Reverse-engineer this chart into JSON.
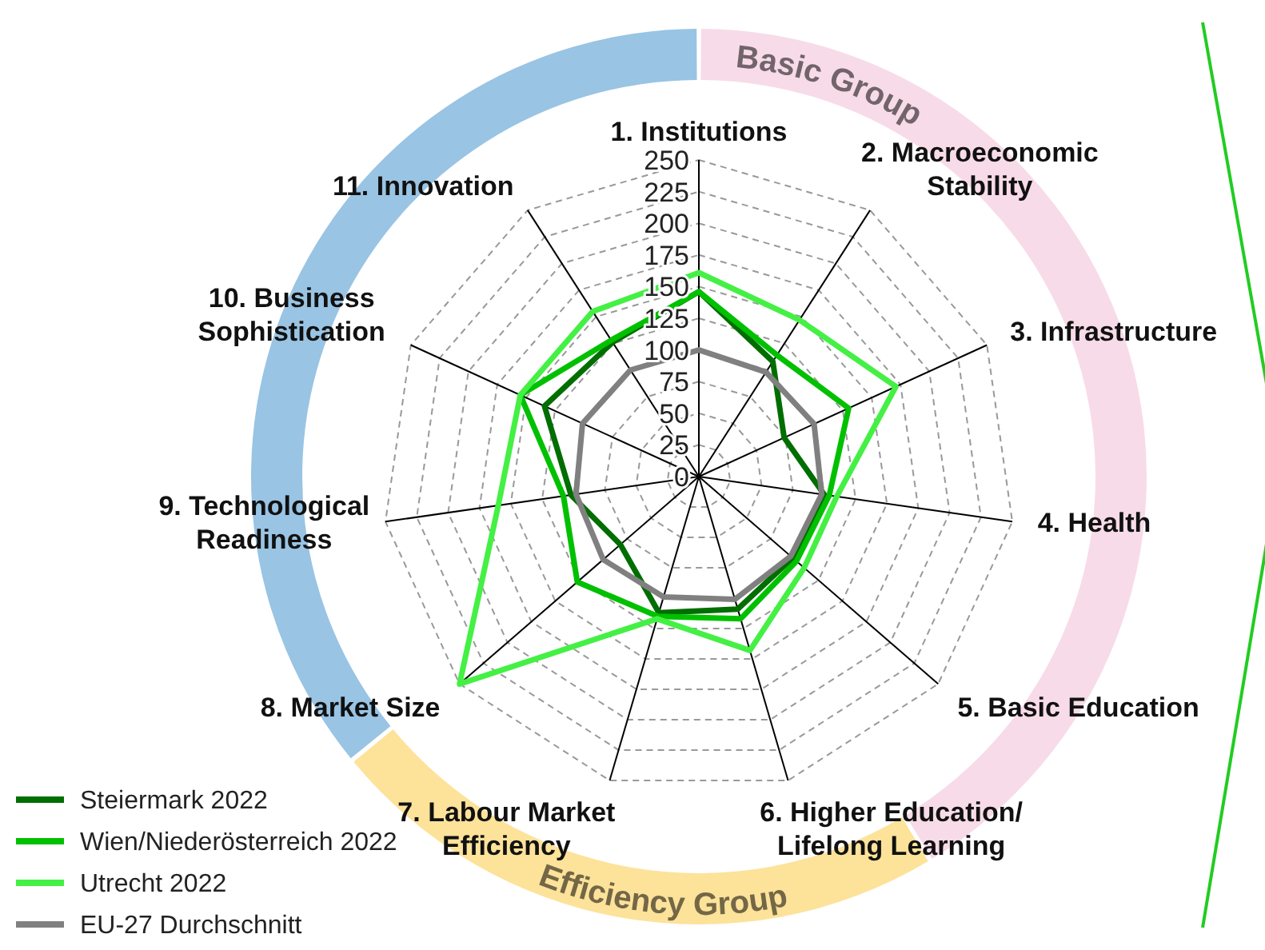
{
  "chart_data": {
    "type": "radar",
    "categories": [
      "1. Institutions",
      "2. Macroeconomic Stability",
      "3. Infrastructure",
      "4. Health",
      "5. Basic Education",
      "6. Higher Education/ Lifelong Learning",
      "7. Labour Market Efficiency",
      "8. Market Size",
      "9. Technological Readiness",
      "10. Business Sophistication",
      "11. Innovation"
    ],
    "series": [
      {
        "name": "Steiermark 2022",
        "color": "#006e00",
        "values": [
          146,
          108,
          74,
          100,
          98,
          109,
          112,
          82,
          102,
          134,
          126
        ]
      },
      {
        "name": "Wien/Niederösterreich 2022",
        "color": "#00c000",
        "values": [
          146,
          114,
          130,
          104,
          102,
          117,
          115,
          127,
          108,
          155,
          128
        ]
      },
      {
        "name": "Utrecht 2022",
        "color": "#44f044",
        "values": [
          161,
          147,
          171,
          110,
          110,
          143,
          117,
          250,
          160,
          155,
          155
        ]
      },
      {
        "name": "EU-27 Durchschnitt",
        "color": "#808080",
        "values": [
          100,
          98,
          100,
          98,
          96,
          101,
          99,
          100,
          98,
          101,
          100
        ]
      }
    ],
    "ylim": [
      0,
      250
    ],
    "yticks": [
      0,
      25,
      50,
      75,
      100,
      125,
      150,
      175,
      200,
      225,
      250
    ],
    "grid": true,
    "legend": "bottom left",
    "marker": "none",
    "line_style": "solid",
    "annotations": [
      "Basic Group",
      "Efficiency Group"
    ]
  }
}
